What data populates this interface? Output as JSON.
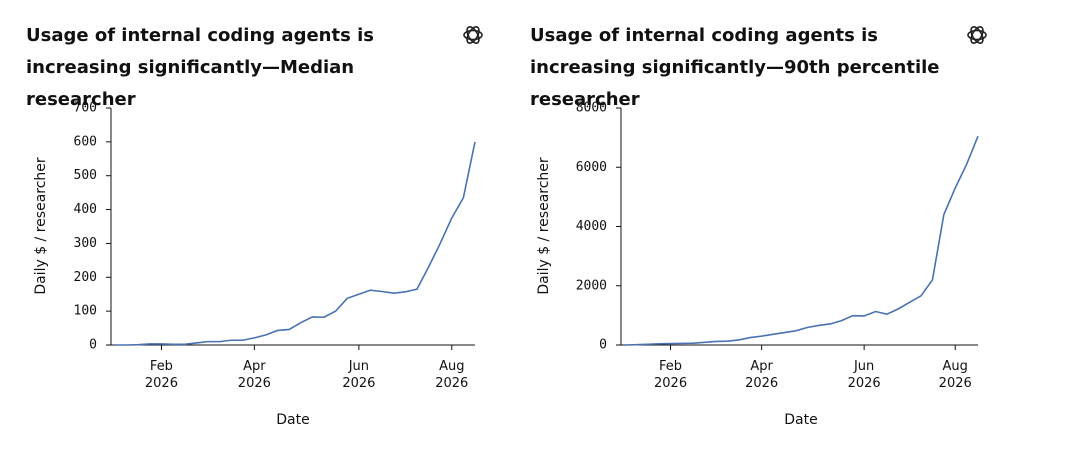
{
  "chart_data": [
    {
      "type": "line",
      "title": "Usage of internal coding agents is increasing significantly—Median researcher",
      "xlabel": "Date",
      "ylabel": "Daily $ / researcher",
      "categories": [
        null,
        null,
        null,
        null,
        "Feb 2026",
        null,
        null,
        null,
        null,
        null,
        null,
        null,
        "Apr 2026",
        null,
        null,
        null,
        null,
        null,
        null,
        null,
        null,
        "Jun 2026",
        null,
        null,
        null,
        null,
        null,
        null,
        null,
        "Aug 2026",
        null,
        null
      ],
      "values": [
        0,
        0,
        1,
        3,
        3,
        2,
        2,
        6,
        10,
        10,
        14,
        14,
        21,
        30,
        43,
        46,
        66,
        83,
        82,
        100,
        138,
        150,
        162,
        158,
        153,
        157,
        165,
        230,
        300,
        375,
        435,
        600
      ],
      "color": "#4a72b0",
      "ylim": [
        0,
        700
      ],
      "yticks": [
        0,
        100,
        200,
        300,
        400,
        500,
        600,
        700
      ]
    },
    {
      "type": "line",
      "title": "Usage of internal coding agents is increasing significantly—90th percentile researcher",
      "xlabel": "Date",
      "ylabel": "Daily $ / researcher",
      "categories": [
        null,
        null,
        null,
        null,
        "Feb 2026",
        null,
        null,
        null,
        null,
        null,
        null,
        null,
        "Apr 2026",
        null,
        null,
        null,
        null,
        null,
        null,
        null,
        null,
        "Jun 2026",
        null,
        null,
        null,
        null,
        null,
        null,
        null,
        "Aug 2026",
        null,
        null
      ],
      "values": [
        0,
        10,
        25,
        40,
        50,
        55,
        60,
        90,
        120,
        130,
        170,
        250,
        300,
        360,
        420,
        480,
        590,
        660,
        710,
        820,
        990,
        980,
        1130,
        1040,
        1220,
        1440,
        1660,
        2200,
        4400,
        5300,
        6100,
        7050
      ],
      "color": "#4a72b0",
      "ylim": [
        0,
        8000
      ],
      "yticks": [
        0,
        2000,
        4000,
        6000,
        8000
      ]
    }
  ]
}
